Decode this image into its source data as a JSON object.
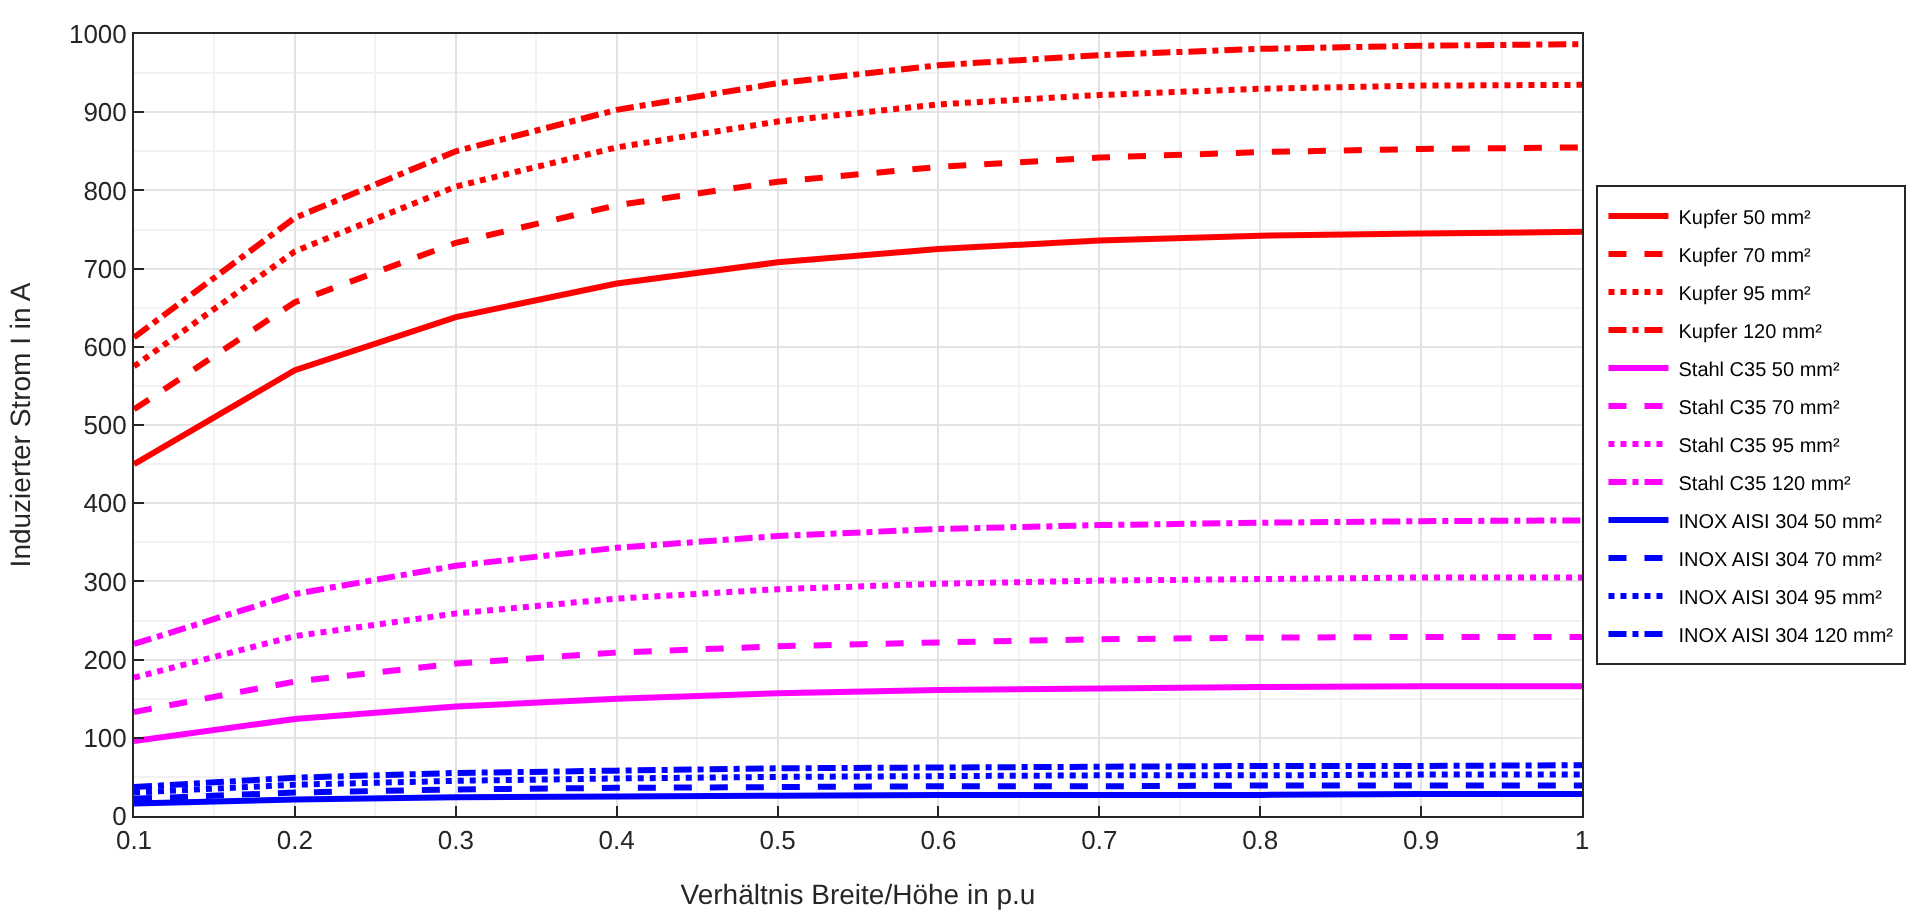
{
  "chart_data": {
    "type": "line",
    "xlabel": "Verhältnis Breite/Höhe in p.u",
    "ylabel": "Induzierter Strom I in A",
    "x": [
      0.1,
      0.2,
      0.3,
      0.4,
      0.5,
      0.6,
      0.7,
      0.8,
      0.9,
      1.0
    ],
    "xlim": [
      0.1,
      1
    ],
    "xticks": [
      0.1,
      0.2,
      0.3,
      0.4,
      0.5,
      0.6,
      0.7,
      0.8,
      0.9,
      1
    ],
    "ylim": [
      0,
      1000
    ],
    "yticks": [
      0,
      100,
      200,
      300,
      400,
      500,
      600,
      700,
      800,
      900,
      1000
    ],
    "grid": true,
    "legend": "right",
    "marker": "none",
    "series": [
      {
        "name": "Kupfer 50 mm²",
        "color": "#ff0000",
        "line_style": "solid",
        "values": [
          450,
          570,
          638,
          681,
          708,
          725,
          736,
          742,
          745,
          747
        ]
      },
      {
        "name": "Kupfer 70 mm²",
        "color": "#ff0000",
        "line_style": "dashed",
        "values": [
          520,
          657,
          733,
          781,
          811,
          830,
          842,
          849,
          853,
          855
        ]
      },
      {
        "name": "Kupfer 95 mm²",
        "color": "#ff0000",
        "line_style": "dotted",
        "values": [
          575,
          722,
          805,
          855,
          888,
          910,
          922,
          930,
          934,
          935
        ]
      },
      {
        "name": "Kupfer 120 mm²",
        "color": "#ff0000",
        "line_style": "dashdot",
        "values": [
          612,
          765,
          850,
          903,
          937,
          960,
          973,
          981,
          985,
          987
        ]
      },
      {
        "name": "Stahl C35 50 mm²",
        "color": "#ff00ff",
        "line_style": "solid",
        "values": [
          96,
          124,
          140,
          150,
          157,
          161,
          163,
          165,
          166,
          166
        ]
      },
      {
        "name": "Stahl C35 70 mm²",
        "color": "#ff00ff",
        "line_style": "dashed",
        "values": [
          133,
          172,
          195,
          209,
          217,
          222,
          226,
          228,
          229,
          229
        ]
      },
      {
        "name": "Stahl C35 95 mm²",
        "color": "#ff00ff",
        "line_style": "dotted",
        "values": [
          177,
          230,
          259,
          278,
          290,
          297,
          301,
          303,
          305,
          305
        ]
      },
      {
        "name": "Stahl C35 120 mm²",
        "color": "#ff00ff",
        "line_style": "dashdot",
        "values": [
          220,
          284,
          320,
          343,
          358,
          367,
          372,
          375,
          377,
          378
        ]
      },
      {
        "name": "INOX AISI 304 50 mm²",
        "color": "#0000ff",
        "line_style": "solid",
        "values": [
          16,
          21,
          24,
          25,
          26,
          27,
          27,
          27,
          28,
          28
        ]
      },
      {
        "name": "INOX AISI 304 70 mm²",
        "color": "#0000ff",
        "line_style": "dashed",
        "values": [
          22,
          30,
          34,
          36,
          37,
          38,
          38,
          39,
          39,
          39
        ]
      },
      {
        "name": "INOX AISI 304 95 mm²",
        "color": "#0000ff",
        "line_style": "dotted",
        "values": [
          30,
          40,
          45,
          48,
          50,
          51,
          52,
          52,
          53,
          53
        ]
      },
      {
        "name": "INOX AISI 304 120 mm²",
        "color": "#0000ff",
        "line_style": "dashdot",
        "values": [
          37,
          49,
          55,
          58,
          61,
          62,
          63,
          64,
          64,
          65
        ]
      }
    ]
  }
}
